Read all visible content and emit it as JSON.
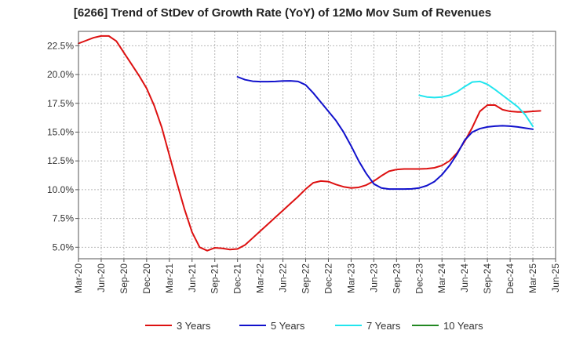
{
  "chart_data": {
    "type": "line",
    "title": "[6266]  Trend of StDev of Growth Rate (YoY) of 12Mo Mov Sum of Revenues",
    "xlabel": "",
    "ylabel": "",
    "ylim": [
      4.0,
      23.75
    ],
    "yticks": [
      5.0,
      7.5,
      10.0,
      12.5,
      15.0,
      17.5,
      20.0,
      22.5
    ],
    "ytick_labels": [
      "5.0%",
      "7.5%",
      "10.0%",
      "12.5%",
      "15.0%",
      "17.5%",
      "20.0%",
      "22.5%"
    ],
    "x_start": "Mar-20",
    "x_end": "Jun-25",
    "xticks": [
      "Mar-20",
      "Jun-20",
      "Sep-20",
      "Dec-20",
      "Mar-21",
      "Jun-21",
      "Sep-21",
      "Dec-21",
      "Mar-22",
      "Jun-22",
      "Sep-22",
      "Dec-22",
      "Mar-23",
      "Jun-23",
      "Sep-23",
      "Dec-23",
      "Mar-24",
      "Jun-24",
      "Sep-24",
      "Dec-24",
      "Mar-25",
      "Jun-25"
    ],
    "grid": true,
    "legend_position": "bottom",
    "series": [
      {
        "name": "3 Years",
        "color": "#dd1111",
        "start_month_index": 0,
        "values": [
          22.7,
          22.95,
          23.2,
          23.35,
          23.35,
          22.9,
          21.9,
          20.9,
          19.9,
          18.8,
          17.3,
          15.4,
          13.0,
          10.6,
          8.3,
          6.3,
          5.0,
          4.7,
          4.95,
          4.9,
          4.8,
          4.85,
          5.2,
          5.8,
          6.4,
          7.0,
          7.6,
          8.2,
          8.8,
          9.4,
          10.05,
          10.6,
          10.75,
          10.7,
          10.45,
          10.25,
          10.15,
          10.2,
          10.4,
          10.75,
          11.2,
          11.6,
          11.75,
          11.8,
          11.8,
          11.8,
          11.82,
          11.9,
          12.1,
          12.5,
          13.2,
          14.2,
          15.4,
          16.8,
          17.35,
          17.35,
          16.95,
          16.8,
          16.75,
          16.75,
          16.8,
          16.85
        ]
      },
      {
        "name": "5 Years",
        "color": "#1111cc",
        "start_month_index": 21,
        "values": [
          19.8,
          19.55,
          19.42,
          19.38,
          19.38,
          19.4,
          19.44,
          19.45,
          19.4,
          19.1,
          18.4,
          17.6,
          16.8,
          16.0,
          15.0,
          13.8,
          12.5,
          11.4,
          10.5,
          10.15,
          10.05,
          10.05,
          10.05,
          10.07,
          10.15,
          10.35,
          10.7,
          11.3,
          12.1,
          13.1,
          14.3,
          15.0,
          15.3,
          15.45,
          15.52,
          15.55,
          15.52,
          15.45,
          15.35,
          15.25
        ]
      },
      {
        "name": "7 Years",
        "color": "#22e5ee",
        "start_month_index": 45,
        "values": [
          18.2,
          18.05,
          18.0,
          18.05,
          18.2,
          18.5,
          18.95,
          19.35,
          19.4,
          19.15,
          18.7,
          18.2,
          17.7,
          17.2,
          16.5,
          15.5
        ]
      },
      {
        "name": "10 Years",
        "color": "#228822",
        "start_month_index": 0,
        "values": []
      }
    ]
  }
}
